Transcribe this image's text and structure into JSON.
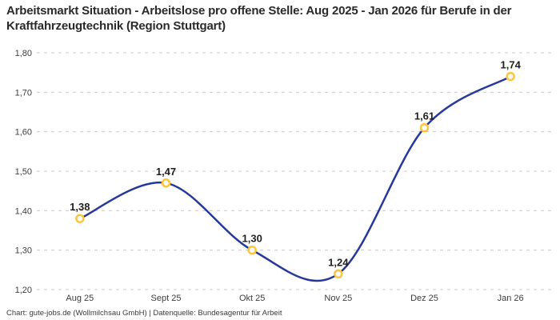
{
  "header": {
    "title": "Arbeitsmarkt Situation - Arbeitslose pro offene Stelle: Aug 2025 - Jan 2026 für Berufe in der Kraftfahrzeugtechnik (Region Stuttgart)"
  },
  "footer": {
    "credit": "Chart: gute-jobs.de (Wollmilchsau GmbH) | Datenquelle: Bundesagentur für Arbeit"
  },
  "chart_data": {
    "type": "line",
    "title": "Arbeitsmarkt Situation - Arbeitslose pro offene Stelle: Aug 2025 - Jan 2026 für Berufe in der Kraftfahrzeugtechnik (Region Stuttgart)",
    "categories": [
      "Aug 25",
      "Sept 25",
      "Okt 25",
      "Nov 25",
      "Dez 25",
      "Jan 26"
    ],
    "values": [
      1.38,
      1.47,
      1.3,
      1.24,
      1.61,
      1.74
    ],
    "value_labels": [
      "1,38",
      "1,47",
      "1,30",
      "1,24",
      "1,61",
      "1,74"
    ],
    "xlabel": "",
    "ylabel": "",
    "ylim": [
      1.2,
      1.8
    ],
    "yticks": [
      1.8,
      1.7,
      1.6,
      1.5,
      1.4,
      1.3,
      1.2
    ],
    "ytick_labels": [
      "1,80",
      "1,70",
      "1,60",
      "1,50",
      "1,40",
      "1,30",
      "1,20"
    ],
    "grid": "horizontal-dashed",
    "legend_position": "none",
    "colors": {
      "line": "#26389b",
      "marker_stroke": "#fcc53b",
      "marker_fill": "#ffffff",
      "grid": "#c9c9c9",
      "value_label": "#1f1f1f",
      "tick_label": "#3d3d3d"
    }
  }
}
